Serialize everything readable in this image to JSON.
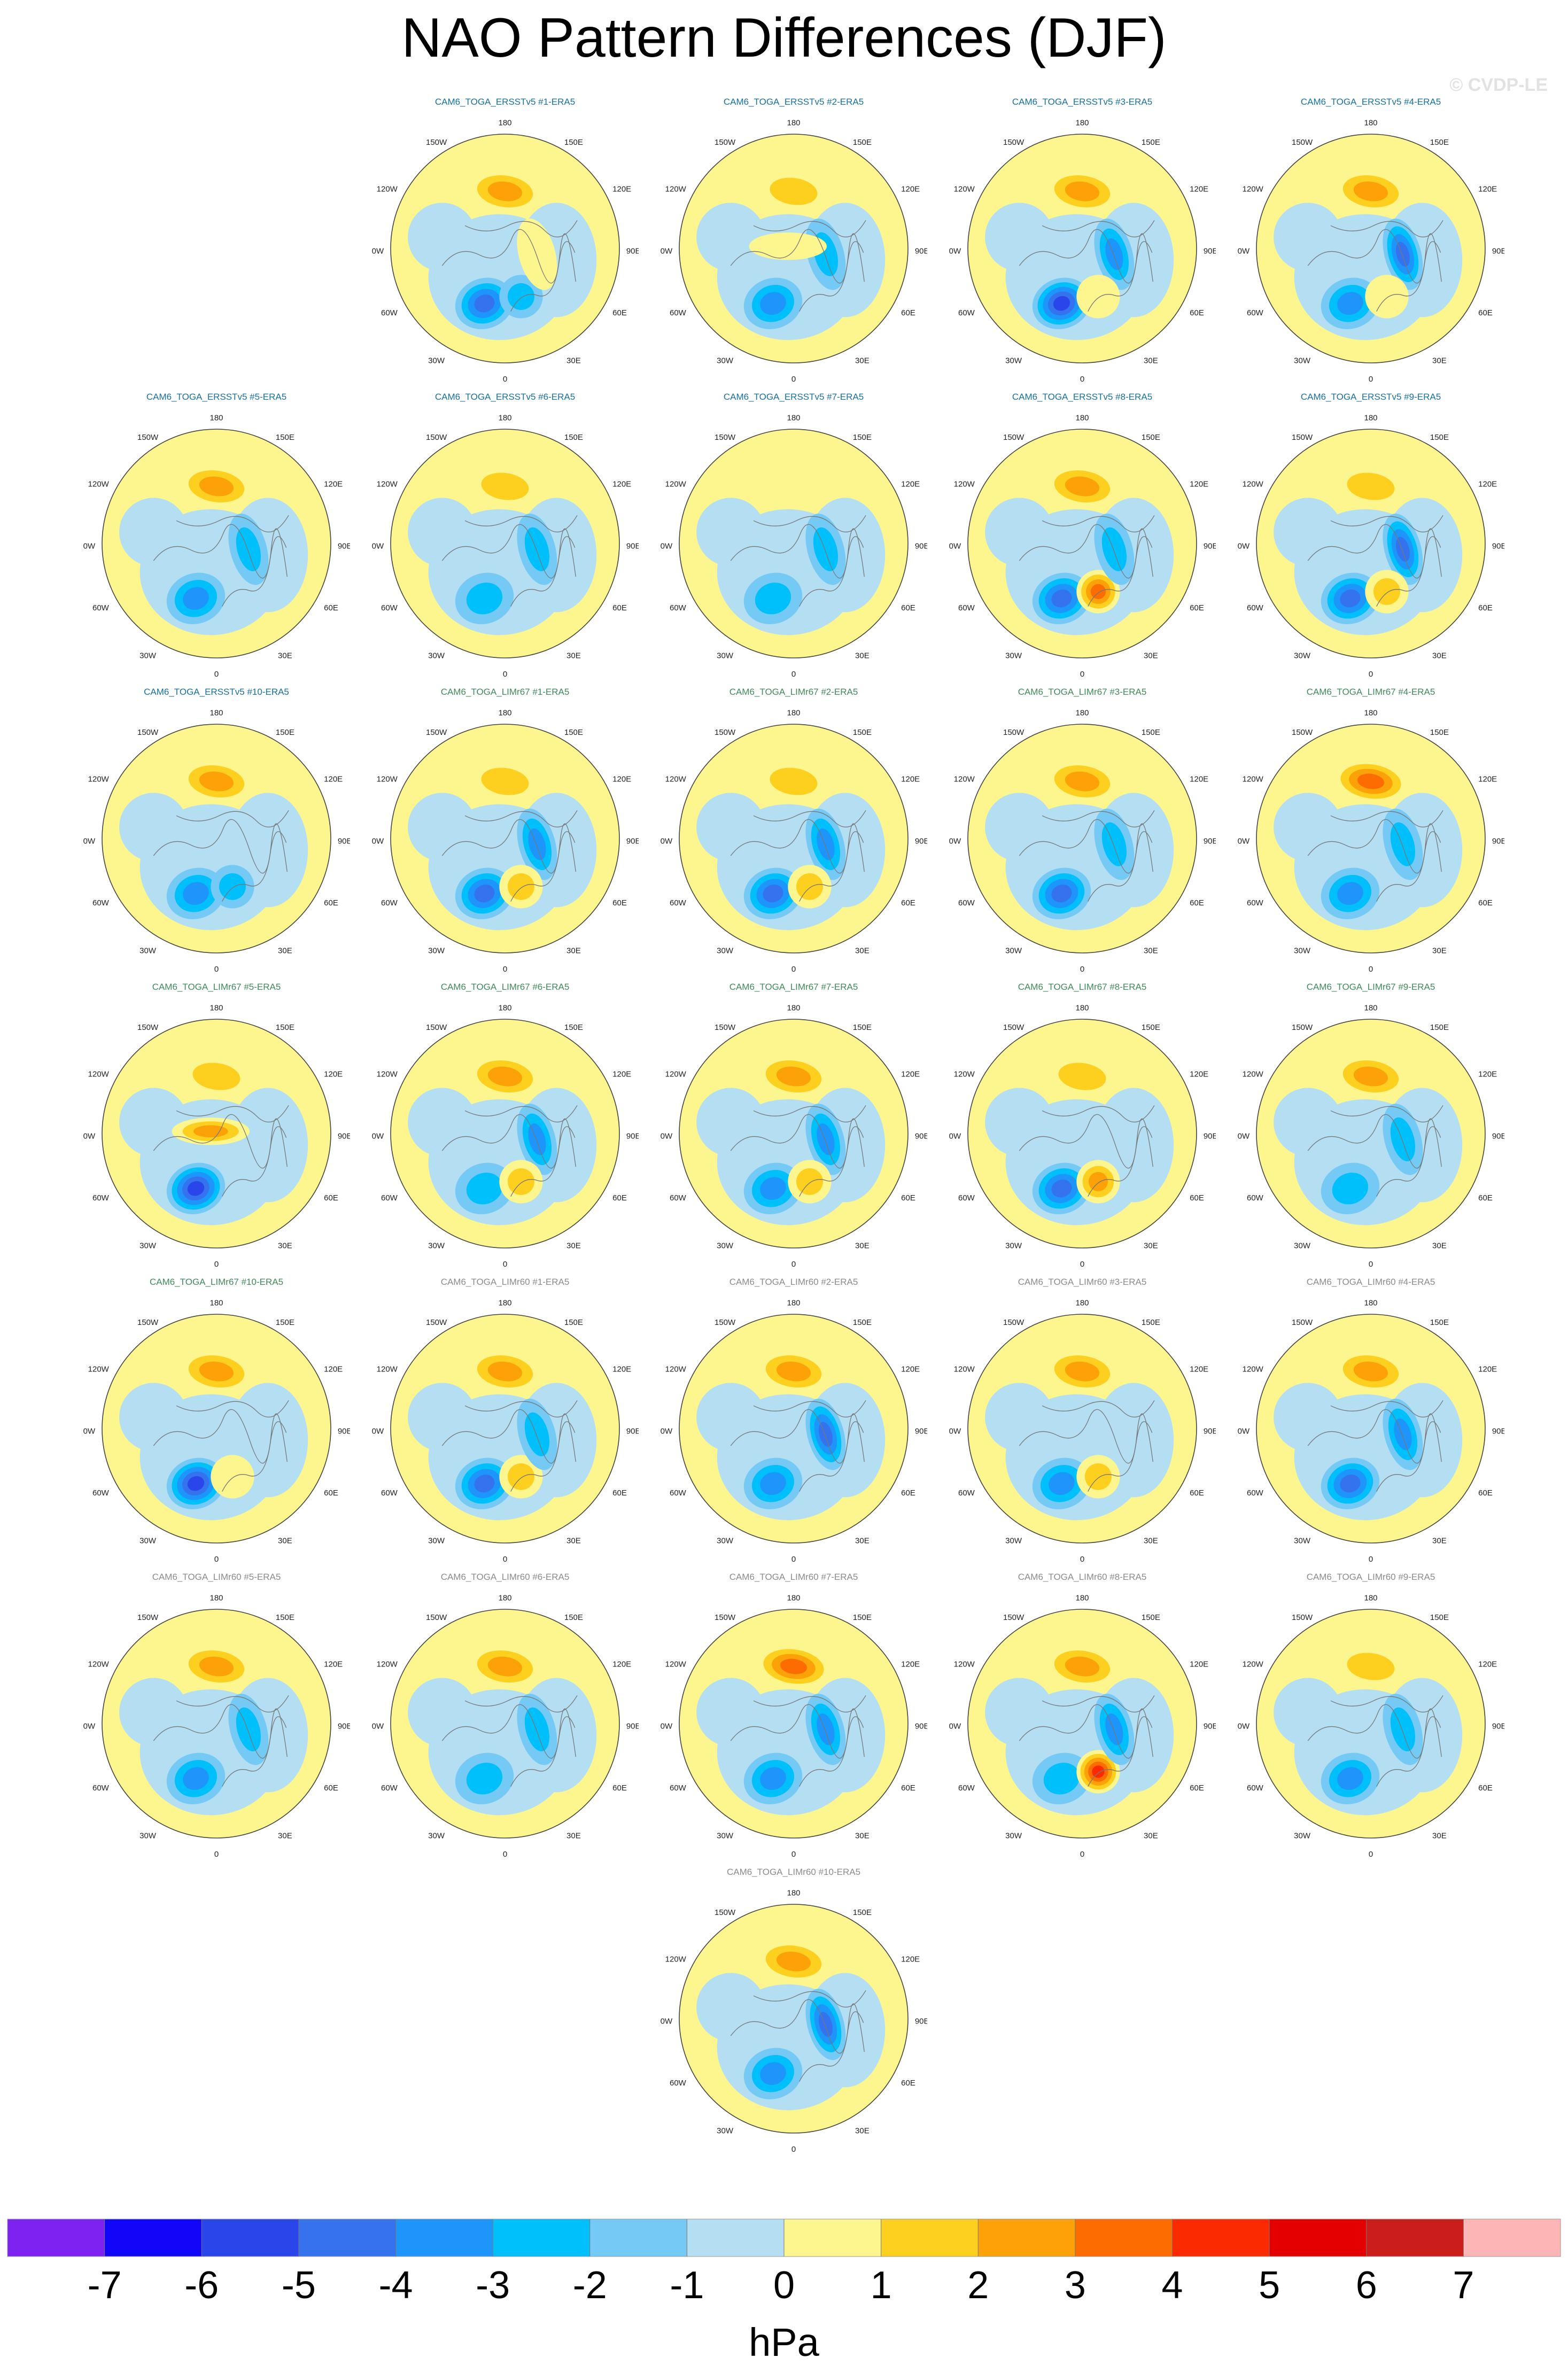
{
  "page": {
    "title": "NAO Pattern Differences (DJF)",
    "credit": "© CVDP-LE"
  },
  "longitude_labels": [
    "180",
    "150W",
    "150E",
    "120W",
    "120E",
    "90W",
    "90E",
    "60W",
    "60E",
    "30W",
    "30E",
    "0"
  ],
  "colorbar": {
    "units": "hPa",
    "tick_labels": [
      "-7",
      "-6",
      "-5",
      "-4",
      "-3",
      "-2",
      "-1",
      "0",
      "1",
      "2",
      "3",
      "4",
      "5",
      "6",
      "7"
    ],
    "colors": [
      "#7d22f0",
      "#1206f8",
      "#2a45e9",
      "#3472ee",
      "#1e95fa",
      "#00c0fb",
      "#75c9f5",
      "#b4dff3",
      "#fdf68e",
      "#fdd020",
      "#fca208",
      "#fc6c00",
      "#fb2a00",
      "#e40000",
      "#cc1d1d",
      "#fdb5b5"
    ]
  },
  "title_colors": {
    "ERSSTv5": "#1670a0",
    "LIMr67": "#3f8a5a",
    "LIMr60": "#8b8b8b"
  },
  "panels": [
    {
      "title": "CAM6_TOGA_ERSSTv5 #1-ERA5",
      "group": "ERSSTv5",
      "blobs": [
        [
          "pac",
          2.8
        ],
        [
          "ice",
          -3.5
        ],
        [
          "atl",
          -1.6
        ],
        [
          "eur",
          0.8
        ]
      ]
    },
    {
      "title": "CAM6_TOGA_ERSSTv5 #2-ERA5",
      "group": "ERSSTv5",
      "blobs": [
        [
          "pac",
          1.6
        ],
        [
          "ice",
          -3.0
        ],
        [
          "eur",
          -1.2
        ],
        [
          "asia",
          0.8
        ]
      ]
    },
    {
      "title": "CAM6_TOGA_ERSSTv5 #3-ERA5",
      "group": "ERSSTv5",
      "blobs": [
        [
          "pac",
          2.8
        ],
        [
          "ice",
          -5.0
        ],
        [
          "eur",
          -3.0
        ],
        [
          "atl",
          1.0
        ]
      ]
    },
    {
      "title": "CAM6_TOGA_ERSSTv5 #4-ERA5",
      "group": "ERSSTv5",
      "blobs": [
        [
          "pac",
          2.6
        ],
        [
          "ice",
          -3.0
        ],
        [
          "eur",
          -3.5
        ],
        [
          "atl",
          1.0
        ]
      ]
    },
    {
      "title": "CAM6_TOGA_ERSSTv5 #5-ERA5",
      "group": "ERSSTv5",
      "blobs": [
        [
          "pac",
          2.8
        ],
        [
          "ice",
          -2.5
        ],
        [
          "eur",
          -2.0
        ]
      ]
    },
    {
      "title": "CAM6_TOGA_ERSSTv5 #6-ERA5",
      "group": "ERSSTv5",
      "blobs": [
        [
          "pac",
          1.6
        ],
        [
          "ice",
          -2.0
        ],
        [
          "eur",
          -1.5
        ]
      ]
    },
    {
      "title": "CAM6_TOGA_ERSSTv5 #7-ERA5",
      "group": "ERSSTv5",
      "blobs": [
        [
          "pac",
          0.8
        ],
        [
          "ice",
          -1.8
        ],
        [
          "eur",
          -2.0
        ]
      ]
    },
    {
      "title": "CAM6_TOGA_ERSSTv5 #8-ERA5",
      "group": "ERSSTv5",
      "blobs": [
        [
          "pac",
          2.8
        ],
        [
          "ice",
          -4.0
        ],
        [
          "atl",
          3.2
        ],
        [
          "eur",
          -1.5
        ]
      ]
    },
    {
      "title": "CAM6_TOGA_ERSSTv5 #9-ERA5",
      "group": "ERSSTv5",
      "blobs": [
        [
          "pac",
          1.8
        ],
        [
          "ice",
          -4.0
        ],
        [
          "eur",
          -3.5
        ],
        [
          "atl",
          1.8
        ]
      ]
    },
    {
      "title": "CAM6_TOGA_ERSSTv5 #10-ERA5",
      "group": "ERSSTv5",
      "blobs": [
        [
          "pac",
          2.8
        ],
        [
          "ice",
          -3.0
        ],
        [
          "atl",
          -1.8
        ]
      ]
    },
    {
      "title": "CAM6_TOGA_LIMr67 #1-ERA5",
      "group": "LIMr67",
      "blobs": [
        [
          "pac",
          2.0
        ],
        [
          "ice",
          -3.5
        ],
        [
          "eur",
          -3.0
        ],
        [
          "atl",
          1.8
        ]
      ]
    },
    {
      "title": "CAM6_TOGA_LIMr67 #2-ERA5",
      "group": "LIMr67",
      "blobs": [
        [
          "pac",
          2.0
        ],
        [
          "ice",
          -4.0
        ],
        [
          "eur",
          -3.0
        ],
        [
          "atl",
          2.0
        ]
      ]
    },
    {
      "title": "CAM6_TOGA_LIMr67 #3-ERA5",
      "group": "LIMr67",
      "blobs": [
        [
          "pac",
          3.0
        ],
        [
          "ice",
          -3.5
        ],
        [
          "eur",
          -2.0
        ]
      ]
    },
    {
      "title": "CAM6_TOGA_LIMr67 #4-ERA5",
      "group": "LIMr67",
      "blobs": [
        [
          "pac",
          3.2
        ],
        [
          "ice",
          -2.5
        ],
        [
          "eur",
          -2.0
        ]
      ]
    },
    {
      "title": "CAM6_TOGA_LIMr67 #5-ERA5",
      "group": "LIMr67",
      "blobs": [
        [
          "pac",
          1.8
        ],
        [
          "ice",
          -4.5
        ],
        [
          "asia",
          2.5
        ]
      ]
    },
    {
      "title": "CAM6_TOGA_LIMr67 #6-ERA5",
      "group": "LIMr67",
      "blobs": [
        [
          "pac",
          2.5
        ],
        [
          "ice",
          -2.0
        ],
        [
          "eur",
          -2.5
        ],
        [
          "atl",
          1.5
        ]
      ]
    },
    {
      "title": "CAM6_TOGA_LIMr67 #7-ERA5",
      "group": "LIMr67",
      "blobs": [
        [
          "pac",
          2.8
        ],
        [
          "ice",
          -2.5
        ],
        [
          "eur",
          -3.0
        ],
        [
          "atl",
          1.5
        ]
      ]
    },
    {
      "title": "CAM6_TOGA_LIMr67 #8-ERA5",
      "group": "LIMr67",
      "blobs": [
        [
          "pac",
          1.5
        ],
        [
          "ice",
          -3.5
        ],
        [
          "atl",
          3.0
        ]
      ]
    },
    {
      "title": "CAM6_TOGA_LIMr67 #9-ERA5",
      "group": "LIMr67",
      "blobs": [
        [
          "pac",
          2.5
        ],
        [
          "ice",
          -2.0
        ],
        [
          "eur",
          -1.2
        ]
      ]
    },
    {
      "title": "CAM6_TOGA_LIMr67 #10-ERA5",
      "group": "LIMr67",
      "blobs": [
        [
          "pac",
          2.8
        ],
        [
          "ice",
          -4.5
        ],
        [
          "atl",
          1.0
        ]
      ]
    },
    {
      "title": "CAM6_TOGA_LIMr60 #1-ERA5",
      "group": "LIMr60",
      "blobs": [
        [
          "pac",
          2.5
        ],
        [
          "ice",
          -3.5
        ],
        [
          "atl",
          2.0
        ],
        [
          "eur",
          -2.0
        ]
      ]
    },
    {
      "title": "CAM6_TOGA_LIMr60 #2-ERA5",
      "group": "LIMr60",
      "blobs": [
        [
          "pac",
          2.5
        ],
        [
          "ice",
          -3.0
        ],
        [
          "eur",
          -3.5
        ]
      ]
    },
    {
      "title": "CAM6_TOGA_LIMr60 #3-ERA5",
      "group": "LIMr60",
      "blobs": [
        [
          "pac",
          2.5
        ],
        [
          "ice",
          -2.5
        ],
        [
          "atl",
          2.0
        ]
      ]
    },
    {
      "title": "CAM6_TOGA_LIMr60 #4-ERA5",
      "group": "LIMr60",
      "blobs": [
        [
          "pac",
          3.0
        ],
        [
          "ice",
          -3.5
        ],
        [
          "eur",
          -3.0
        ]
      ]
    },
    {
      "title": "CAM6_TOGA_LIMr60 #5-ERA5",
      "group": "LIMr60",
      "blobs": [
        [
          "pac",
          2.5
        ],
        [
          "ice",
          -3.0
        ],
        [
          "eur",
          -1.5
        ]
      ]
    },
    {
      "title": "CAM6_TOGA_LIMr60 #6-ERA5",
      "group": "LIMr60",
      "blobs": [
        [
          "pac",
          3.0
        ],
        [
          "ice",
          -2.0
        ],
        [
          "eur",
          -1.8
        ]
      ]
    },
    {
      "title": "CAM6_TOGA_LIMr60 #7-ERA5",
      "group": "LIMr60",
      "blobs": [
        [
          "pac",
          3.5
        ],
        [
          "ice",
          -2.5
        ],
        [
          "eur",
          -2.5
        ]
      ]
    },
    {
      "title": "CAM6_TOGA_LIMr60 #8-ERA5",
      "group": "LIMr60",
      "blobs": [
        [
          "pac",
          2.5
        ],
        [
          "ice",
          -1.5
        ],
        [
          "atl",
          4.5
        ],
        [
          "eur",
          -3.0
        ]
      ]
    },
    {
      "title": "CAM6_TOGA_LIMr60 #9-ERA5",
      "group": "LIMr60",
      "blobs": [
        [
          "pac",
          2.0
        ],
        [
          "ice",
          -3.0
        ],
        [
          "eur",
          -1.5
        ]
      ]
    },
    {
      "title": "CAM6_TOGA_LIMr60 #10-ERA5",
      "group": "LIMr60",
      "blobs": [
        [
          "pac",
          2.5
        ],
        [
          "ice",
          -3.0
        ],
        [
          "eur",
          -3.5
        ]
      ]
    }
  ]
}
